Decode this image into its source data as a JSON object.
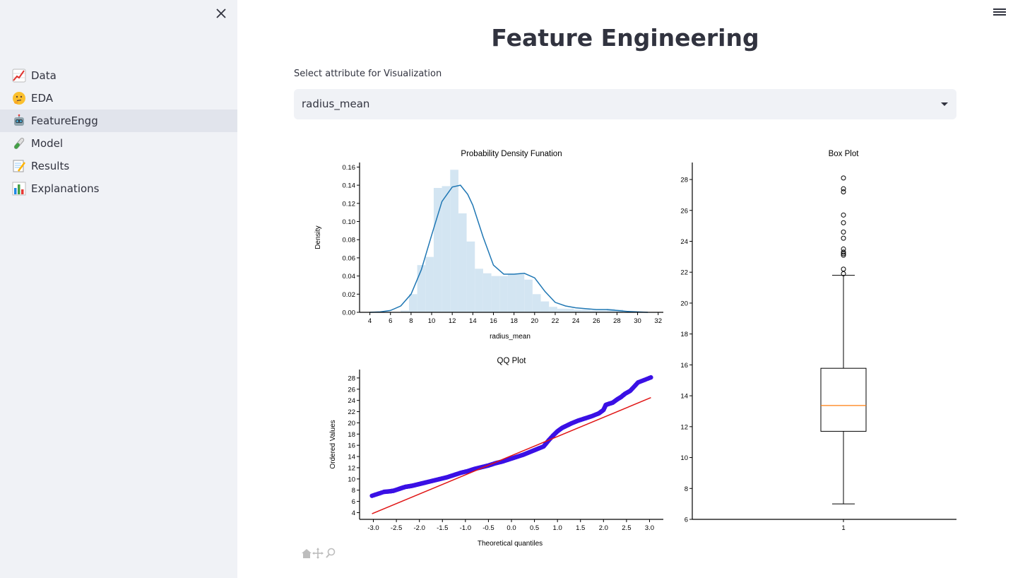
{
  "sidebar": {
    "items": [
      {
        "emoji": "chart-increasing-icon",
        "label": "Data"
      },
      {
        "emoji": "thinking-face-icon",
        "label": "EDA"
      },
      {
        "emoji": "robot-icon",
        "label": "FeatureEngg"
      },
      {
        "emoji": "test-tube-icon",
        "label": "Model"
      },
      {
        "emoji": "memo-icon",
        "label": "Results"
      },
      {
        "emoji": "bar-chart-icon",
        "label": "Explanations"
      }
    ],
    "active": "FeatureEngg"
  },
  "page": {
    "title": "Feature Engineering",
    "select_label": "Select attribute for Visualization",
    "select_value": "radius_mean"
  },
  "colors": {
    "hist_fill": "#d3e5f2",
    "kde_line": "#1f77b4",
    "qq_points": "#3a10e5",
    "qq_line": "#e01515",
    "box_median": "#ff7f0e"
  },
  "chart_data": [
    {
      "type": "bar",
      "title": "Probability Density Funation",
      "xlabel": "radius_mean",
      "ylabel": "Density",
      "xlim": [
        3,
        32.5
      ],
      "ylim": [
        0,
        0.165
      ],
      "xticks": [
        4,
        6,
        8,
        10,
        12,
        14,
        16,
        18,
        20,
        22,
        24,
        26,
        28,
        30,
        32
      ],
      "yticks": [
        0.0,
        0.02,
        0.04,
        0.06,
        0.08,
        0.1,
        0.12,
        0.14,
        0.16
      ],
      "histogram": {
        "bin_edges": [
          6.98,
          7.8,
          8.6,
          9.4,
          10.2,
          11.0,
          11.8,
          12.6,
          13.4,
          14.2,
          15.0,
          15.8,
          16.6,
          17.4,
          18.2,
          19.0,
          19.8,
          20.6,
          21.4,
          22.2,
          23.0,
          23.8,
          24.6,
          25.4,
          26.2,
          27.0,
          27.8,
          28.6
        ],
        "densities": [
          0.002,
          0.02,
          0.052,
          0.061,
          0.137,
          0.139,
          0.157,
          0.109,
          0.078,
          0.048,
          0.043,
          0.04,
          0.04,
          0.042,
          0.042,
          0.036,
          0.02,
          0.012,
          0.006,
          0.004,
          0.004,
          0.003,
          0.003,
          0.002,
          0.002,
          0.004,
          0.003
        ]
      },
      "kde": {
        "x": [
          4,
          5,
          6,
          7,
          8,
          9,
          10,
          11,
          12,
          12.8,
          13.5,
          14,
          15,
          16,
          17,
          18,
          19,
          20,
          21,
          22,
          23,
          24,
          25,
          26,
          27,
          28,
          29,
          30,
          31
        ],
        "y": [
          0.0,
          0.0005,
          0.002,
          0.007,
          0.02,
          0.047,
          0.085,
          0.122,
          0.138,
          0.14,
          0.13,
          0.118,
          0.083,
          0.052,
          0.042,
          0.042,
          0.043,
          0.038,
          0.023,
          0.011,
          0.007,
          0.005,
          0.004,
          0.003,
          0.003,
          0.002,
          0.001,
          0.0005,
          0.0
        ]
      }
    },
    {
      "type": "scatter",
      "title": "QQ Plot",
      "xlabel": "Theoretical quantiles",
      "ylabel": "Ordered Values",
      "xlim": [
        -3.3,
        3.3
      ],
      "ylim": [
        2.8,
        29.5
      ],
      "xticks": [
        -3.0,
        -2.5,
        -2.0,
        -1.5,
        -1.0,
        -0.5,
        0.0,
        0.5,
        1.0,
        1.5,
        2.0,
        2.5,
        3.0
      ],
      "yticks": [
        4,
        6,
        8,
        10,
        12,
        14,
        16,
        18,
        20,
        22,
        24,
        26,
        28
      ],
      "points": {
        "x": [
          -3.03,
          -2.77,
          -2.64,
          -2.56,
          -2.45,
          -2.38,
          -2.3,
          -2.22,
          -2.15,
          -2.05,
          -1.95,
          -1.85,
          -1.7,
          -1.55,
          -1.4,
          -1.25,
          -1.1,
          -0.95,
          -0.8,
          -0.65,
          -0.5,
          -0.35,
          -0.2,
          -0.05,
          0.1,
          0.25,
          0.4,
          0.55,
          0.7,
          0.8,
          0.9,
          1.0,
          1.1,
          1.2,
          1.3,
          1.45,
          1.6,
          1.75,
          1.9,
          2.0,
          2.05,
          2.12,
          2.2,
          2.3,
          2.38,
          2.47,
          2.58,
          2.75,
          3.03
        ],
        "y": [
          7.0,
          7.7,
          7.8,
          7.9,
          8.2,
          8.4,
          8.6,
          8.7,
          8.8,
          9.0,
          9.2,
          9.4,
          9.7,
          10.0,
          10.3,
          10.7,
          11.1,
          11.4,
          11.8,
          12.1,
          12.4,
          12.8,
          13.1,
          13.5,
          13.9,
          14.3,
          14.8,
          15.3,
          15.8,
          16.8,
          17.7,
          18.5,
          19.1,
          19.5,
          19.9,
          20.4,
          20.8,
          21.2,
          21.7,
          22.3,
          23.2,
          23.4,
          23.6,
          24.2,
          24.6,
          25.2,
          25.7,
          27.2,
          28.1
        ]
      },
      "fit_line": {
        "x": [
          -3.03,
          3.03
        ],
        "y": [
          3.8,
          24.5
        ]
      }
    },
    {
      "type": "box",
      "title": "Box Plot",
      "xlabel": "",
      "ylabel": "",
      "ylim": [
        6,
        29.1
      ],
      "yticks": [
        6,
        8,
        10,
        12,
        14,
        16,
        18,
        20,
        22,
        24,
        26,
        28
      ],
      "xticks": [
        "1"
      ],
      "box": {
        "whisker_low": 7.0,
        "q1": 11.7,
        "median": 13.37,
        "q3": 15.78,
        "whisker_high": 21.8
      },
      "outliers": [
        21.9,
        22.2,
        23.1,
        23.2,
        23.3,
        23.5,
        24.2,
        24.6,
        25.2,
        25.7,
        27.2,
        27.4,
        28.1
      ]
    }
  ]
}
